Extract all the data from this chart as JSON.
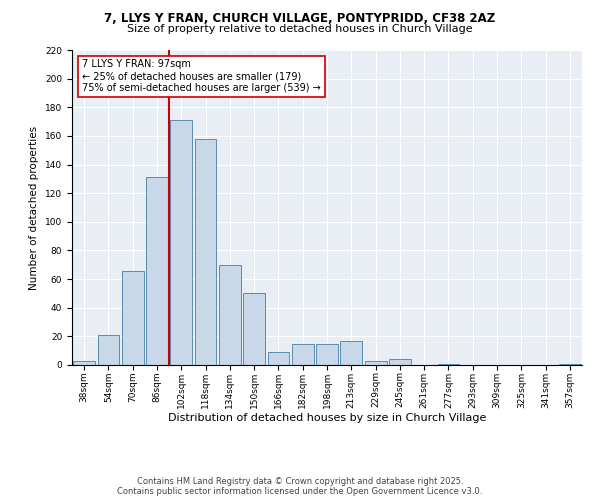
{
  "title_line1": "7, LLYS Y FRAN, CHURCH VILLAGE, PONTYPRIDD, CF38 2AZ",
  "title_line2": "Size of property relative to detached houses in Church Village",
  "xlabel": "Distribution of detached houses by size in Church Village",
  "ylabel": "Number of detached properties",
  "bar_labels": [
    "38sqm",
    "54sqm",
    "70sqm",
    "86sqm",
    "102sqm",
    "118sqm",
    "134sqm",
    "150sqm",
    "166sqm",
    "182sqm",
    "198sqm",
    "213sqm",
    "229sqm",
    "245sqm",
    "261sqm",
    "277sqm",
    "293sqm",
    "309sqm",
    "325sqm",
    "341sqm",
    "357sqm"
  ],
  "bar_values": [
    3,
    21,
    66,
    131,
    171,
    158,
    70,
    50,
    9,
    15,
    15,
    17,
    3,
    4,
    0,
    1,
    0,
    0,
    0,
    0,
    1
  ],
  "bar_color": "#c8d8e8",
  "bar_edgecolor": "#5b8db0",
  "vline_color": "#cc0000",
  "annotation_text": "7 LLYS Y FRAN: 97sqm\n← 25% of detached houses are smaller (179)\n75% of semi-detached houses are larger (539) →",
  "annotation_box_edgecolor": "#cc0000",
  "ylim": [
    0,
    220
  ],
  "yticks": [
    0,
    20,
    40,
    60,
    80,
    100,
    120,
    140,
    160,
    180,
    200,
    220
  ],
  "footer_line1": "Contains HM Land Registry data © Crown copyright and database right 2025.",
  "footer_line2": "Contains public sector information licensed under the Open Government Licence v3.0.",
  "axes_bg_color": "#e8eef4",
  "fig_bg_color": "#ffffff",
  "grid_color": "#ffffff",
  "title1_fontsize": 8.5,
  "title2_fontsize": 8.0,
  "ylabel_fontsize": 7.5,
  "xlabel_fontsize": 8.0,
  "tick_fontsize": 6.5,
  "annotation_fontsize": 7.0,
  "footer_fontsize": 6.0
}
